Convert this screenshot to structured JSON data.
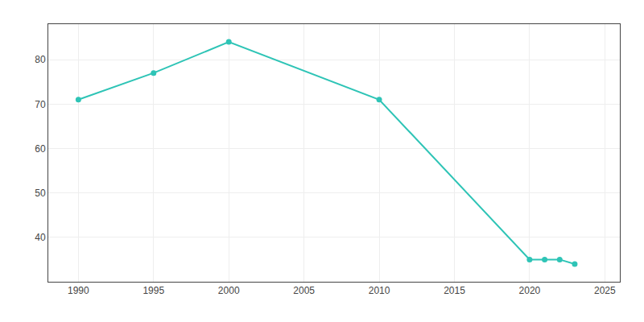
{
  "chart_data": {
    "type": "line",
    "x": [
      1990,
      1995,
      2000,
      2010,
      2020,
      2021,
      2022,
      2023
    ],
    "values": [
      71,
      77,
      84,
      71,
      35,
      35,
      35,
      34
    ],
    "color": "#2ec4b6",
    "marker": "circle",
    "xlim": [
      1988,
      2026
    ],
    "xticks": [
      1990,
      1995,
      2000,
      2005,
      2010,
      2015,
      2020,
      2025
    ],
    "ylim": [
      30,
      88
    ],
    "yticks": [
      40,
      50,
      60,
      70,
      80
    ],
    "grid": true
  }
}
